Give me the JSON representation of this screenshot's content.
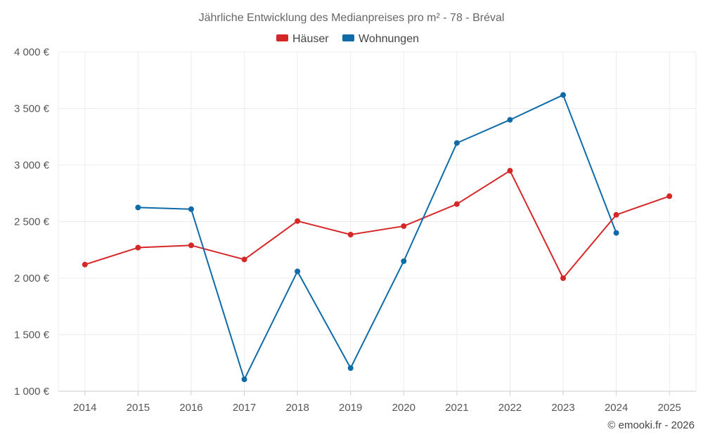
{
  "chart_data": {
    "type": "line",
    "title": "Jährliche Entwicklung des Medianpreises pro m² - 78 - Bréval",
    "categories": [
      "2014",
      "2015",
      "2016",
      "2017",
      "2018",
      "2019",
      "2020",
      "2021",
      "2022",
      "2023",
      "2024",
      "2025"
    ],
    "y_ticks": [
      "1 000 €",
      "1 500 €",
      "2 000 €",
      "2 500 €",
      "3 000 €",
      "3 500 €",
      "4 000 €"
    ],
    "ylim": [
      1000,
      4000
    ],
    "grid": true,
    "legend_position": "top-center",
    "series": [
      {
        "name": "Häuser",
        "color": "#d62728",
        "values": [
          2120,
          2270,
          2290,
          2165,
          2505,
          2385,
          2460,
          2655,
          2950,
          2000,
          2560,
          2725
        ]
      },
      {
        "name": "Wohnungen",
        "color": "#0e6ba8",
        "values": [
          null,
          2625,
          2610,
          1105,
          2060,
          1205,
          2150,
          3195,
          3400,
          3620,
          2400,
          null
        ]
      }
    ],
    "credit": "© emooki.fr - 2026"
  }
}
